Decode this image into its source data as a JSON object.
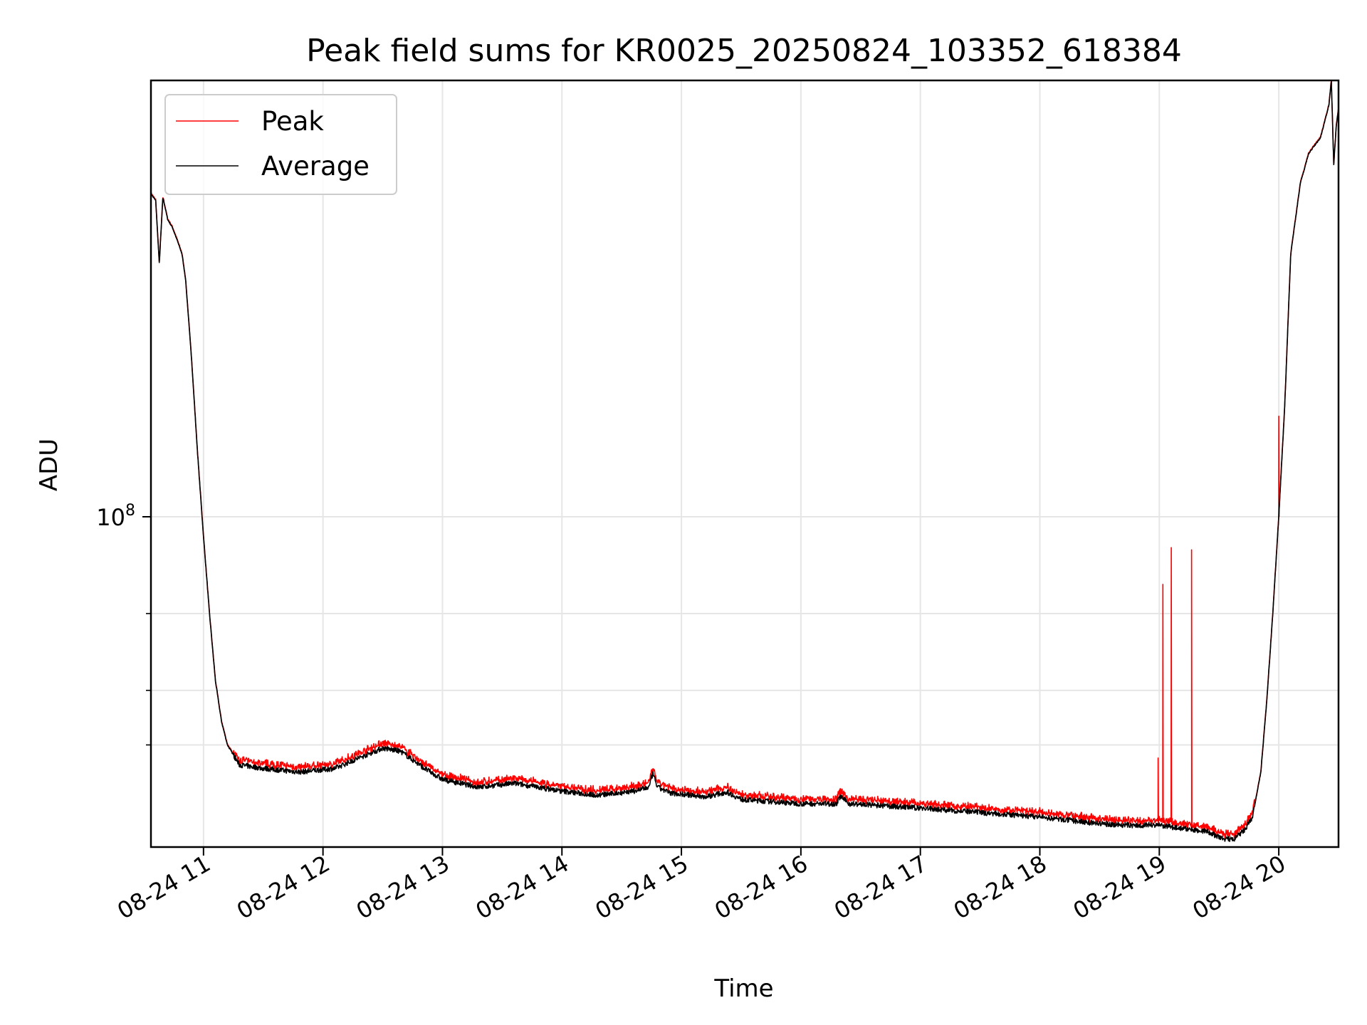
{
  "chart_data": {
    "type": "line",
    "title": "Peak field sums for KR0025_20250824_103352_618384",
    "xlabel": "Time",
    "ylabel": "ADU",
    "y_scale": "log",
    "x_unit": "hours",
    "xlim": [
      10.56,
      20.5
    ],
    "ylim": [
      17500000,
      1000000000
    ],
    "x_ticks": [
      {
        "value": 11,
        "label": "08-24 11"
      },
      {
        "value": 12,
        "label": "08-24 12"
      },
      {
        "value": 13,
        "label": "08-24 13"
      },
      {
        "value": 14,
        "label": "08-24 14"
      },
      {
        "value": 15,
        "label": "08-24 15"
      },
      {
        "value": 16,
        "label": "08-24 16"
      },
      {
        "value": 17,
        "label": "08-24 17"
      },
      {
        "value": 18,
        "label": "08-24 18"
      },
      {
        "value": 19,
        "label": "08-24 19"
      },
      {
        "value": 20,
        "label": "08-24 20"
      }
    ],
    "y_major_ticks": [
      {
        "value": 100000000,
        "base": "10",
        "exp": "8"
      }
    ],
    "y_minor_ticks": [
      30000000,
      40000000,
      60000000
    ],
    "grid": true,
    "legend_position": "top-left",
    "series": [
      {
        "name": "Peak",
        "color": "#ff0000"
      },
      {
        "name": "Average",
        "color": "#000000"
      }
    ],
    "average_curve": [
      [
        10.56,
        550000000
      ],
      [
        10.6,
        530000000
      ],
      [
        10.63,
        380000000
      ],
      [
        10.66,
        540000000
      ],
      [
        10.7,
        480000000
      ],
      [
        10.74,
        460000000
      ],
      [
        10.78,
        430000000
      ],
      [
        10.82,
        400000000
      ],
      [
        10.85,
        350000000
      ],
      [
        10.9,
        230000000
      ],
      [
        10.95,
        140000000
      ],
      [
        11.0,
        90000000
      ],
      [
        11.05,
        60000000
      ],
      [
        11.1,
        42000000
      ],
      [
        11.15,
        34000000
      ],
      [
        11.2,
        30000000
      ],
      [
        11.3,
        27000000
      ],
      [
        11.5,
        26500000
      ],
      [
        11.8,
        26000000
      ],
      [
        12.1,
        26500000
      ],
      [
        12.3,
        28000000
      ],
      [
        12.5,
        29500000
      ],
      [
        12.65,
        29000000
      ],
      [
        12.85,
        26500000
      ],
      [
        13.0,
        25000000
      ],
      [
        13.3,
        24000000
      ],
      [
        13.6,
        24500000
      ],
      [
        14.0,
        23500000
      ],
      [
        14.3,
        23000000
      ],
      [
        14.6,
        23500000
      ],
      [
        14.73,
        24000000
      ],
      [
        14.76,
        25800000
      ],
      [
        14.8,
        24000000
      ],
      [
        14.9,
        23300000
      ],
      [
        15.2,
        22800000
      ],
      [
        15.38,
        23400000
      ],
      [
        15.5,
        22500000
      ],
      [
        16.0,
        22000000
      ],
      [
        16.3,
        22000000
      ],
      [
        16.33,
        22900000
      ],
      [
        16.4,
        22000000
      ],
      [
        17.0,
        21500000
      ],
      [
        17.5,
        21000000
      ],
      [
        18.0,
        20500000
      ],
      [
        18.5,
        19800000
      ],
      [
        18.8,
        19600000
      ],
      [
        18.95,
        19700000
      ],
      [
        19.2,
        19300000
      ],
      [
        19.4,
        19000000
      ],
      [
        19.52,
        18300000
      ],
      [
        19.62,
        18200000
      ],
      [
        19.72,
        19200000
      ],
      [
        19.78,
        20500000
      ],
      [
        19.85,
        26000000
      ],
      [
        19.9,
        38000000
      ],
      [
        19.95,
        60000000
      ],
      [
        20.0,
        100000000
      ],
      [
        20.05,
        180000000
      ],
      [
        20.1,
        400000000
      ],
      [
        20.18,
        580000000
      ],
      [
        20.25,
        680000000
      ],
      [
        20.35,
        740000000
      ],
      [
        20.42,
        880000000
      ],
      [
        20.44,
        1000000000
      ],
      [
        20.46,
        640000000
      ],
      [
        20.48,
        780000000
      ],
      [
        20.5,
        860000000
      ]
    ],
    "peak_spikes": [
      [
        18.99,
        28000000
      ],
      [
        19.03,
        70000000
      ],
      [
        19.1,
        85000000
      ],
      [
        19.27,
        84000000
      ],
      [
        20.0,
        170000000
      ]
    ]
  }
}
